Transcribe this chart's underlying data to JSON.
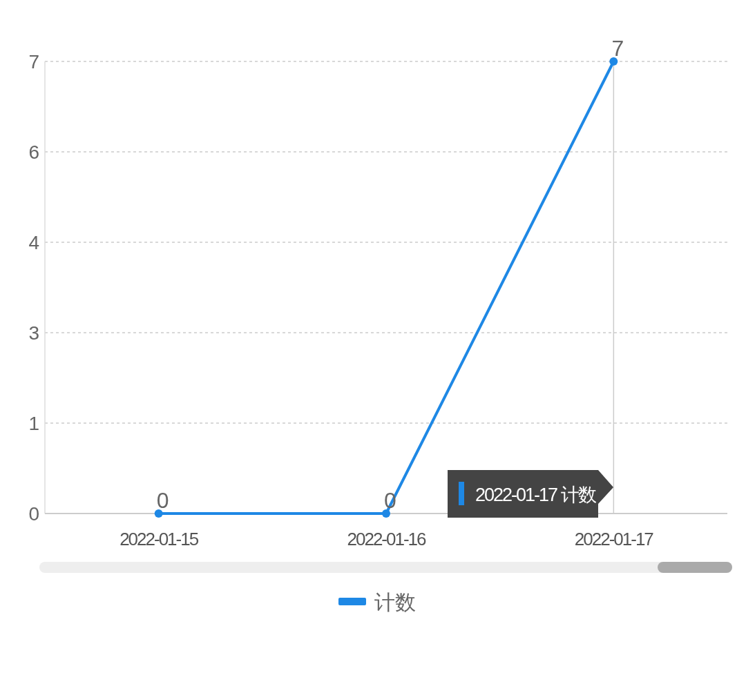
{
  "chart_data": {
    "type": "line",
    "categories": [
      "2022-01-15",
      "2022-01-16",
      "2022-01-17"
    ],
    "series": [
      {
        "name": "计数",
        "color": "#1e88e5",
        "values": [
          0,
          0,
          7
        ]
      }
    ],
    "ylim": [
      0,
      7
    ],
    "yticks": [
      0,
      {
        "value": 1.4,
        "label": "1"
      },
      {
        "value": 2.8,
        "label": "3"
      },
      {
        "value": 4.2,
        "label": "4"
      },
      {
        "value": 5.6,
        "label": "6"
      },
      7
    ],
    "grid": "y",
    "legend": "bottom",
    "marker": "circle",
    "line_style": "solid",
    "data_labels": true,
    "ref_lines": [
      {
        "axis": "x",
        "value": "2022-01-17",
        "color": "#cccccc"
      }
    ],
    "annotations": [
      "2022-01-17 计数"
    ]
  }
}
